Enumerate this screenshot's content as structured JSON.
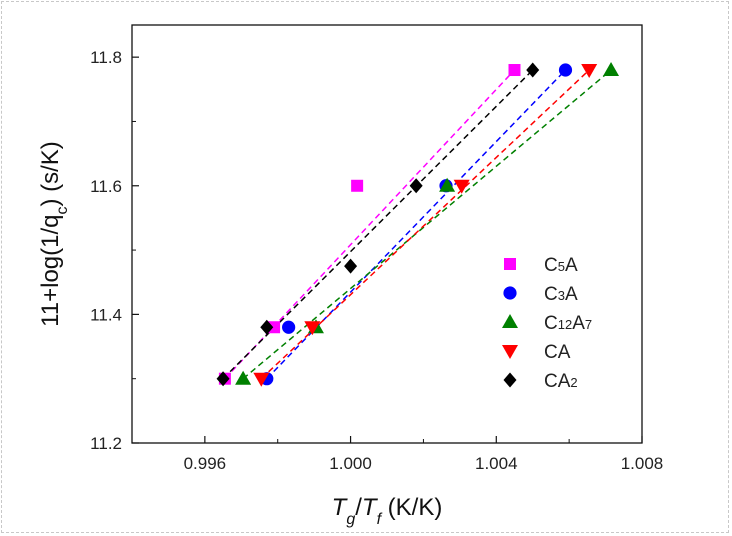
{
  "chart_data": {
    "type": "scatter",
    "title": "",
    "xlabel": "Tg/Tf (K/K)",
    "xlabel_parts": {
      "t1": "T",
      "s1": "g",
      "slash": "/",
      "t2": "T",
      "s2": "f",
      "unit": " (K/K)"
    },
    "ylabel": "11+log(1/qc) (s/K)",
    "ylabel_parts": {
      "pre": "11+log(1/q",
      "sub": "c",
      "post": ") (s/K)"
    },
    "xlim": [
      0.994,
      1.008
    ],
    "ylim": [
      11.2,
      11.85
    ],
    "xticks": [
      0.996,
      1.0,
      1.004,
      1.008
    ],
    "xtick_labels": [
      "0.996",
      "1.000",
      "1.004",
      "1.008"
    ],
    "yticks": [
      11.2,
      11.4,
      11.6,
      11.8
    ],
    "ytick_labels": [
      "11.2",
      "11.4",
      "11.6",
      "11.8"
    ],
    "legend_position": "right",
    "series": [
      {
        "name": "C5A",
        "label_parts": [
          "C",
          "5",
          "A"
        ],
        "marker": "square",
        "color": "#ff00ff",
        "x": [
          0.99655,
          0.9979,
          1.00018,
          1.0045
        ],
        "y": [
          11.3,
          11.38,
          11.6,
          11.78
        ],
        "fit": [
          [
            0.99655,
            11.3
          ],
          [
            1.0045,
            11.78
          ]
        ]
      },
      {
        "name": "C3A",
        "label_parts": [
          "C",
          "3",
          "A"
        ],
        "marker": "circle",
        "color": "#0000ff",
        "x": [
          0.9977,
          0.9983,
          1.00262,
          1.0059
        ],
        "y": [
          11.3,
          11.38,
          11.6,
          11.78
        ],
        "fit": [
          [
            0.9977,
            11.3
          ],
          [
            1.0059,
            11.78
          ]
        ]
      },
      {
        "name": "C12A7",
        "label_parts": [
          "C",
          "12",
          "A",
          "7"
        ],
        "marker": "triangle-up",
        "color": "#008000",
        "x": [
          0.99705,
          0.99905,
          1.00265,
          1.00715
        ],
        "y": [
          11.3,
          11.38,
          11.6,
          11.78
        ],
        "fit": [
          [
            0.99705,
            11.3
          ],
          [
            1.00715,
            11.78
          ]
        ]
      },
      {
        "name": "CA",
        "label_parts": [
          "CA"
        ],
        "marker": "triangle-down",
        "color": "#ff0000",
        "x": [
          0.99755,
          0.99895,
          1.00305,
          1.00655
        ],
        "y": [
          11.3,
          11.38,
          11.6,
          11.78
        ],
        "fit": [
          [
            0.99755,
            11.3
          ],
          [
            1.00655,
            11.78
          ]
        ]
      },
      {
        "name": "CA2",
        "label_parts": [
          "CA",
          "2"
        ],
        "marker": "diamond",
        "color": "#000000",
        "x": [
          0.9965,
          0.9977,
          1.0,
          1.0018,
          1.005
        ],
        "y": [
          11.3,
          11.38,
          11.475,
          11.6,
          11.78
        ],
        "fit": [
          [
            0.9965,
            11.3
          ],
          [
            1.005,
            11.78
          ]
        ]
      }
    ]
  }
}
